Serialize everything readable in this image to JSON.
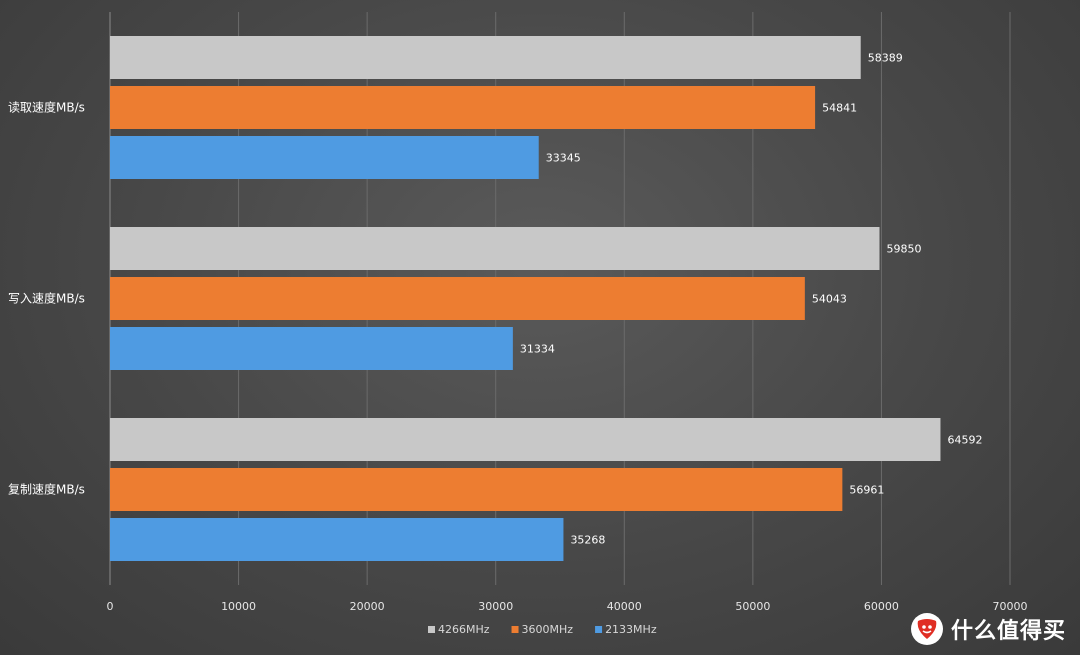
{
  "chart_data": {
    "type": "bar",
    "orientation": "horizontal",
    "categories": [
      "读取速度MB/s",
      "写入速度MB/s",
      "复制速度MB/s"
    ],
    "series": [
      {
        "name": "4266MHz",
        "color": "#c8c8c8",
        "values": [
          58389,
          59850,
          64592
        ]
      },
      {
        "name": "3600MHz",
        "color": "#ed7d31",
        "values": [
          54841,
          54043,
          56961
        ]
      },
      {
        "name": "2133MHz",
        "color": "#4f9be2",
        "values": [
          33345,
          31334,
          35268
        ]
      }
    ],
    "xlim": [
      0,
      70000
    ],
    "xticks": [
      0,
      10000,
      20000,
      30000,
      40000,
      50000,
      60000,
      70000
    ],
    "grid": "vertical",
    "legend": "bottom",
    "title": "",
    "xlabel": "",
    "ylabel": ""
  },
  "watermark": {
    "text": "什么值得买",
    "icon": "smzdm-logo-icon"
  }
}
